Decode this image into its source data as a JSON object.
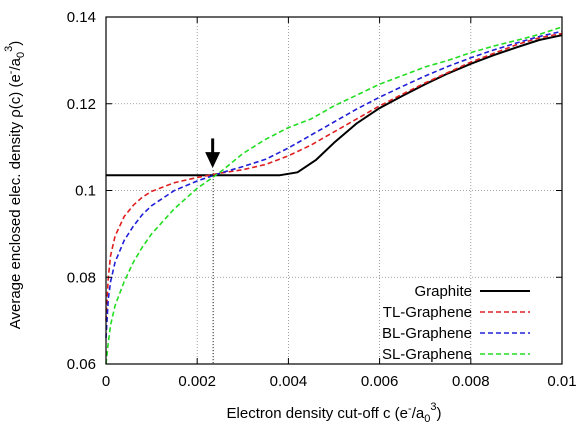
{
  "chart_data": {
    "type": "line",
    "xlabel": "Electron density cut-off c (e",
    "xlabel_sup1": "-",
    "xlabel_sep": "/a",
    "xlabel_sub": "0",
    "xlabel_sup2": "3",
    "xlabel_end": ")",
    "ylabel": "Average enclosed elec. density ρ(c) (e",
    "ylabel_sup1": "-",
    "ylabel_sep": "/a",
    "ylabel_sub": "0",
    "ylabel_sup2": "3",
    "ylabel_end": ")",
    "xlim": [
      0,
      0.01
    ],
    "ylim": [
      0.06,
      0.14
    ],
    "xticks": [
      0,
      0.002,
      0.004,
      0.006,
      0.008,
      0.01
    ],
    "xtick_labels": [
      "0",
      "0.002",
      "0.004",
      "0.006",
      "0.008",
      "0.01"
    ],
    "yticks": [
      0.06,
      0.08,
      0.1,
      0.12,
      0.14
    ],
    "ytick_labels": [
      "0.06",
      "0.08",
      "0.1",
      "0.12",
      "0.14"
    ],
    "grid": true,
    "legend_position": "bottom-right",
    "annotation": {
      "type": "arrow",
      "x": 0.00235,
      "y_from": 0.112,
      "y_to": 0.1047,
      "vline_x": 0.00235
    },
    "series": [
      {
        "name": "Graphite",
        "color": "#000000",
        "dash": "solid",
        "points": [
          [
            0,
            0.1035
          ],
          [
            0.0024,
            0.1035
          ],
          [
            0.0038,
            0.1035
          ],
          [
            0.0042,
            0.1042
          ],
          [
            0.0046,
            0.107
          ],
          [
            0.005,
            0.111
          ],
          [
            0.0055,
            0.1155
          ],
          [
            0.006,
            0.119
          ],
          [
            0.0065,
            0.1218
          ],
          [
            0.007,
            0.1245
          ],
          [
            0.0075,
            0.127
          ],
          [
            0.008,
            0.1292
          ],
          [
            0.0085,
            0.1312
          ],
          [
            0.009,
            0.133
          ],
          [
            0.0095,
            0.1347
          ],
          [
            0.01,
            0.1358
          ]
        ]
      },
      {
        "name": "TL-Graphene",
        "color": "#e02020",
        "dash": "dashed",
        "points": [
          [
            0,
            0.07
          ],
          [
            5e-05,
            0.08
          ],
          [
            0.0001,
            0.085
          ],
          [
            0.0002,
            0.0895
          ],
          [
            0.0004,
            0.094
          ],
          [
            0.0006,
            0.0966
          ],
          [
            0.0008,
            0.0985
          ],
          [
            0.001,
            0.0998
          ],
          [
            0.0015,
            0.1018
          ],
          [
            0.002,
            0.103
          ],
          [
            0.0025,
            0.104
          ],
          [
            0.003,
            0.1048
          ],
          [
            0.0035,
            0.106
          ],
          [
            0.004,
            0.108
          ],
          [
            0.0045,
            0.1105
          ],
          [
            0.005,
            0.1135
          ],
          [
            0.0055,
            0.1165
          ],
          [
            0.006,
            0.1195
          ],
          [
            0.0065,
            0.1222
          ],
          [
            0.007,
            0.1248
          ],
          [
            0.0075,
            0.1272
          ],
          [
            0.008,
            0.1296
          ],
          [
            0.0085,
            0.1316
          ],
          [
            0.009,
            0.1336
          ],
          [
            0.0095,
            0.1352
          ],
          [
            0.01,
            0.1362
          ]
        ]
      },
      {
        "name": "BL-Graphene",
        "color": "#2020d8",
        "dash": "dashed",
        "points": [
          [
            0,
            0.066
          ],
          [
            5e-05,
            0.075
          ],
          [
            0.0001,
            0.079
          ],
          [
            0.0002,
            0.0835
          ],
          [
            0.0004,
            0.0885
          ],
          [
            0.0006,
            0.0918
          ],
          [
            0.0008,
            0.0945
          ],
          [
            0.001,
            0.0965
          ],
          [
            0.0015,
            0.1
          ],
          [
            0.002,
            0.1022
          ],
          [
            0.0025,
            0.104
          ],
          [
            0.003,
            0.1055
          ],
          [
            0.0035,
            0.1072
          ],
          [
            0.004,
            0.1098
          ],
          [
            0.0045,
            0.1128
          ],
          [
            0.005,
            0.1158
          ],
          [
            0.0055,
            0.1188
          ],
          [
            0.006,
            0.1215
          ],
          [
            0.0065,
            0.124
          ],
          [
            0.007,
            0.1264
          ],
          [
            0.0075,
            0.1286
          ],
          [
            0.008,
            0.1306
          ],
          [
            0.0085,
            0.1324
          ],
          [
            0.009,
            0.134
          ],
          [
            0.0095,
            0.1355
          ],
          [
            0.01,
            0.1367
          ]
        ]
      },
      {
        "name": "SL-Graphene",
        "color": "#22dd22",
        "dash": "dashed",
        "points": [
          [
            0,
            0.06
          ],
          [
            5e-05,
            0.065
          ],
          [
            0.0001,
            0.069
          ],
          [
            0.0002,
            0.0735
          ],
          [
            0.0004,
            0.079
          ],
          [
            0.0006,
            0.0835
          ],
          [
            0.0008,
            0.087
          ],
          [
            0.001,
            0.09
          ],
          [
            0.0015,
            0.0958
          ],
          [
            0.002,
            0.1005
          ],
          [
            0.0025,
            0.1042
          ],
          [
            0.003,
            0.1085
          ],
          [
            0.0035,
            0.1118
          ],
          [
            0.004,
            0.1145
          ],
          [
            0.0045,
            0.1165
          ],
          [
            0.005,
            0.1195
          ],
          [
            0.0055,
            0.122
          ],
          [
            0.006,
            0.1245
          ],
          [
            0.0065,
            0.1265
          ],
          [
            0.007,
            0.1285
          ],
          [
            0.0075,
            0.13
          ],
          [
            0.008,
            0.1318
          ],
          [
            0.0085,
            0.1333
          ],
          [
            0.009,
            0.1346
          ],
          [
            0.0095,
            0.136
          ],
          [
            0.01,
            0.1377
          ]
        ]
      }
    ]
  }
}
